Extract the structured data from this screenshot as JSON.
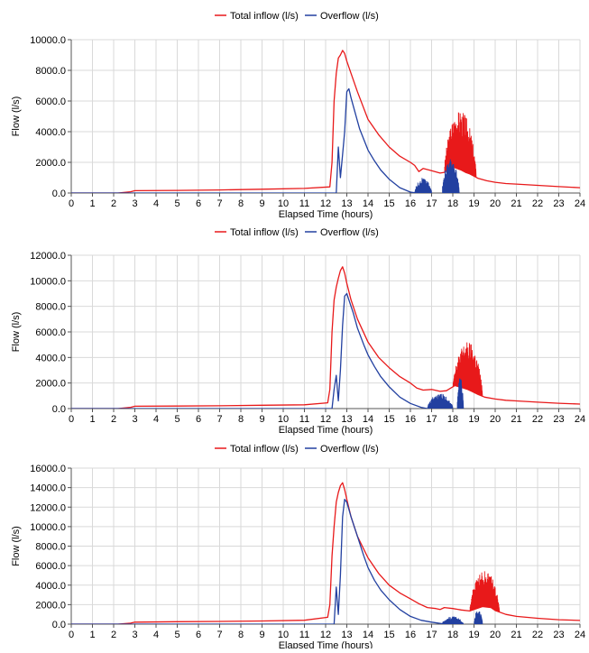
{
  "chart_data": [
    {
      "type": "line",
      "title": "",
      "xlabel": "Elapsed Time (hours)",
      "ylabel": "Flow (l/s)",
      "xlim": [
        0,
        24
      ],
      "ylim": [
        0,
        10000
      ],
      "xticks": [
        "0",
        "1",
        "2",
        "3",
        "4",
        "5",
        "6",
        "7",
        "8",
        "9",
        "10",
        "11",
        "12",
        "13",
        "14",
        "15",
        "16",
        "17",
        "18",
        "19",
        "20",
        "21",
        "22",
        "23",
        "24"
      ],
      "yticks": [
        "0.0",
        "2000.0",
        "4000.0",
        "6000.0",
        "8000.0",
        "10000.0"
      ],
      "grid": true,
      "legend_position": "top-center",
      "series": [
        {
          "name": "Total inflow (l/s)",
          "color": "#e8191a",
          "x": [
            0,
            2.2,
            2.8,
            3,
            5,
            7,
            9,
            11,
            12.2,
            12.3,
            12.4,
            12.5,
            12.6,
            12.7,
            12.8,
            12.9,
            13,
            13.2,
            13.5,
            14,
            14.5,
            15,
            15.5,
            16,
            16.2,
            16.4,
            16.6,
            17,
            17.4,
            17.6,
            17.8,
            18,
            18.2,
            18.4,
            18.6,
            18.8,
            19,
            19.2,
            19.6,
            20,
            20.5,
            21,
            22,
            23,
            24
          ],
          "y": [
            0,
            0,
            80,
            150,
            170,
            200,
            250,
            300,
            400,
            2000,
            6000,
            7800,
            8800,
            9000,
            9300,
            9100,
            8600,
            7800,
            6600,
            4800,
            3800,
            3000,
            2400,
            2000,
            1800,
            1400,
            1600,
            1450,
            1300,
            1350,
            1500,
            1700,
            1600,
            1500,
            1350,
            1250,
            1100,
            950,
            800,
            700,
            620,
            580,
            500,
            420,
            350
          ],
          "spikes": [
            [
              17.6,
              19.1,
              5400
            ]
          ]
        },
        {
          "name": "Overflow (l/s)",
          "color": "#2240a0",
          "x": [
            0,
            12.5,
            12.6,
            12.7,
            12.8,
            12.9,
            13,
            13.1,
            13.2,
            13.4,
            13.6,
            13.8,
            14,
            14.3,
            14.6,
            15,
            15.5,
            16,
            16.3
          ],
          "y": [
            0,
            0,
            3000,
            1000,
            2500,
            4000,
            6600,
            6800,
            6200,
            5200,
            4200,
            3500,
            2800,
            2100,
            1500,
            900,
            350,
            60,
            0
          ],
          "spikes": [
            [
              16.2,
              17,
              1000
            ],
            [
              17.5,
              18.3,
              2300
            ]
          ]
        }
      ]
    },
    {
      "type": "line",
      "title": "",
      "xlabel": "Elapsed Time (hours)",
      "ylabel": "Flow (l/s)",
      "xlim": [
        0,
        24
      ],
      "ylim": [
        0,
        12000
      ],
      "xticks": [
        "0",
        "1",
        "2",
        "3",
        "4",
        "5",
        "6",
        "7",
        "8",
        "9",
        "10",
        "11",
        "12",
        "13",
        "14",
        "15",
        "16",
        "17",
        "18",
        "19",
        "20",
        "21",
        "22",
        "23",
        "24"
      ],
      "yticks": [
        "0.0",
        "2000.0",
        "4000.0",
        "6000.0",
        "8000.0",
        "10000.0",
        "12000.0"
      ],
      "grid": true,
      "legend_position": "top-center",
      "series": [
        {
          "name": "Total inflow (l/s)",
          "color": "#e8191a",
          "x": [
            0,
            2.2,
            2.8,
            3,
            5,
            7,
            9,
            11,
            12.1,
            12.2,
            12.3,
            12.4,
            12.5,
            12.6,
            12.7,
            12.8,
            12.9,
            13,
            13.2,
            13.5,
            14,
            14.5,
            15,
            15.5,
            16,
            16.3,
            16.6,
            17,
            17.4,
            17.7,
            17.9,
            18.1,
            18.3,
            18.5,
            18.7,
            18.9,
            19.2,
            19.5,
            20,
            20.5,
            21,
            22,
            23,
            24
          ],
          "y": [
            0,
            0,
            100,
            180,
            200,
            220,
            260,
            300,
            450,
            1500,
            6000,
            8500,
            9500,
            10200,
            10800,
            11100,
            10600,
            9800,
            8500,
            7000,
            5200,
            4000,
            3200,
            2500,
            2000,
            1600,
            1450,
            1500,
            1350,
            1400,
            1600,
            1800,
            1700,
            1600,
            1500,
            1350,
            1100,
            900,
            750,
            650,
            600,
            500,
            420,
            350
          ],
          "spikes": [
            [
              18,
              19.4,
              5200
            ]
          ]
        },
        {
          "name": "Overflow (l/s)",
          "color": "#2240a0",
          "x": [
            0,
            12.3,
            12.4,
            12.5,
            12.6,
            12.7,
            12.8,
            12.9,
            13,
            13.1,
            13.3,
            13.5,
            13.8,
            14,
            14.3,
            14.6,
            15,
            15.5,
            16,
            16.5,
            16.8
          ],
          "y": [
            0,
            0,
            1500,
            2600,
            600,
            3000,
            6500,
            8800,
            9000,
            8500,
            7500,
            6300,
            5000,
            4200,
            3300,
            2500,
            1700,
            900,
            400,
            100,
            0
          ],
          "spikes": [
            [
              16.8,
              18,
              1200
            ],
            [
              18.2,
              18.5,
              2600
            ]
          ]
        }
      ]
    },
    {
      "type": "line",
      "title": "",
      "xlabel": "Elapsed Time (hours)",
      "ylabel": "Flow (l/s)",
      "xlim": [
        0,
        24
      ],
      "ylim": [
        0,
        16000
      ],
      "xticks": [
        "0",
        "1",
        "2",
        "3",
        "4",
        "5",
        "6",
        "7",
        "8",
        "9",
        "10",
        "11",
        "12",
        "13",
        "14",
        "15",
        "16",
        "17",
        "18",
        "19",
        "20",
        "21",
        "22",
        "23",
        "24"
      ],
      "yticks": [
        "0.0",
        "2000.0",
        "4000.0",
        "6000.0",
        "8000.0",
        "10000.0",
        "12000.0",
        "14000.0",
        "16000.0"
      ],
      "grid": true,
      "legend_position": "top-center",
      "series": [
        {
          "name": "Total inflow (l/s)",
          "color": "#e8191a",
          "x": [
            0,
            2.2,
            2.8,
            3,
            5,
            7,
            9,
            11,
            12.1,
            12.2,
            12.3,
            12.4,
            12.5,
            12.6,
            12.7,
            12.8,
            12.9,
            13,
            13.2,
            13.5,
            14,
            14.5,
            15,
            15.5,
            16,
            16.4,
            16.8,
            17.2,
            17.4,
            17.6,
            18,
            18.4,
            18.8,
            19,
            19.4,
            19.8,
            20,
            20.5,
            21,
            22,
            23,
            24
          ],
          "y": [
            0,
            0,
            100,
            200,
            250,
            280,
            320,
            400,
            700,
            2000,
            7000,
            10000,
            12500,
            13500,
            14200,
            14500,
            13800,
            12800,
            11000,
            9000,
            6800,
            5200,
            4000,
            3200,
            2600,
            2100,
            1700,
            1600,
            1500,
            1700,
            1600,
            1450,
            1350,
            1500,
            1800,
            1700,
            1400,
            1000,
            800,
            600,
            450,
            380
          ],
          "spikes": [
            [
              18.8,
              20.2,
              5500
            ]
          ]
        },
        {
          "name": "Overflow (l/s)",
          "color": "#2240a0",
          "x": [
            0,
            12.4,
            12.5,
            12.6,
            12.7,
            12.8,
            12.9,
            13,
            13.2,
            13.5,
            13.8,
            14,
            14.3,
            14.6,
            15,
            15.5,
            16,
            16.5,
            17,
            17.5,
            17.8
          ],
          "y": [
            0,
            0,
            3800,
            1000,
            5000,
            11000,
            12800,
            12500,
            11000,
            9000,
            7000,
            5800,
            4500,
            3500,
            2500,
            1500,
            800,
            400,
            200,
            50,
            0
          ],
          "spikes": [
            [
              17.5,
              18.5,
              800
            ],
            [
              19,
              19.4,
              1600
            ]
          ]
        }
      ]
    }
  ]
}
